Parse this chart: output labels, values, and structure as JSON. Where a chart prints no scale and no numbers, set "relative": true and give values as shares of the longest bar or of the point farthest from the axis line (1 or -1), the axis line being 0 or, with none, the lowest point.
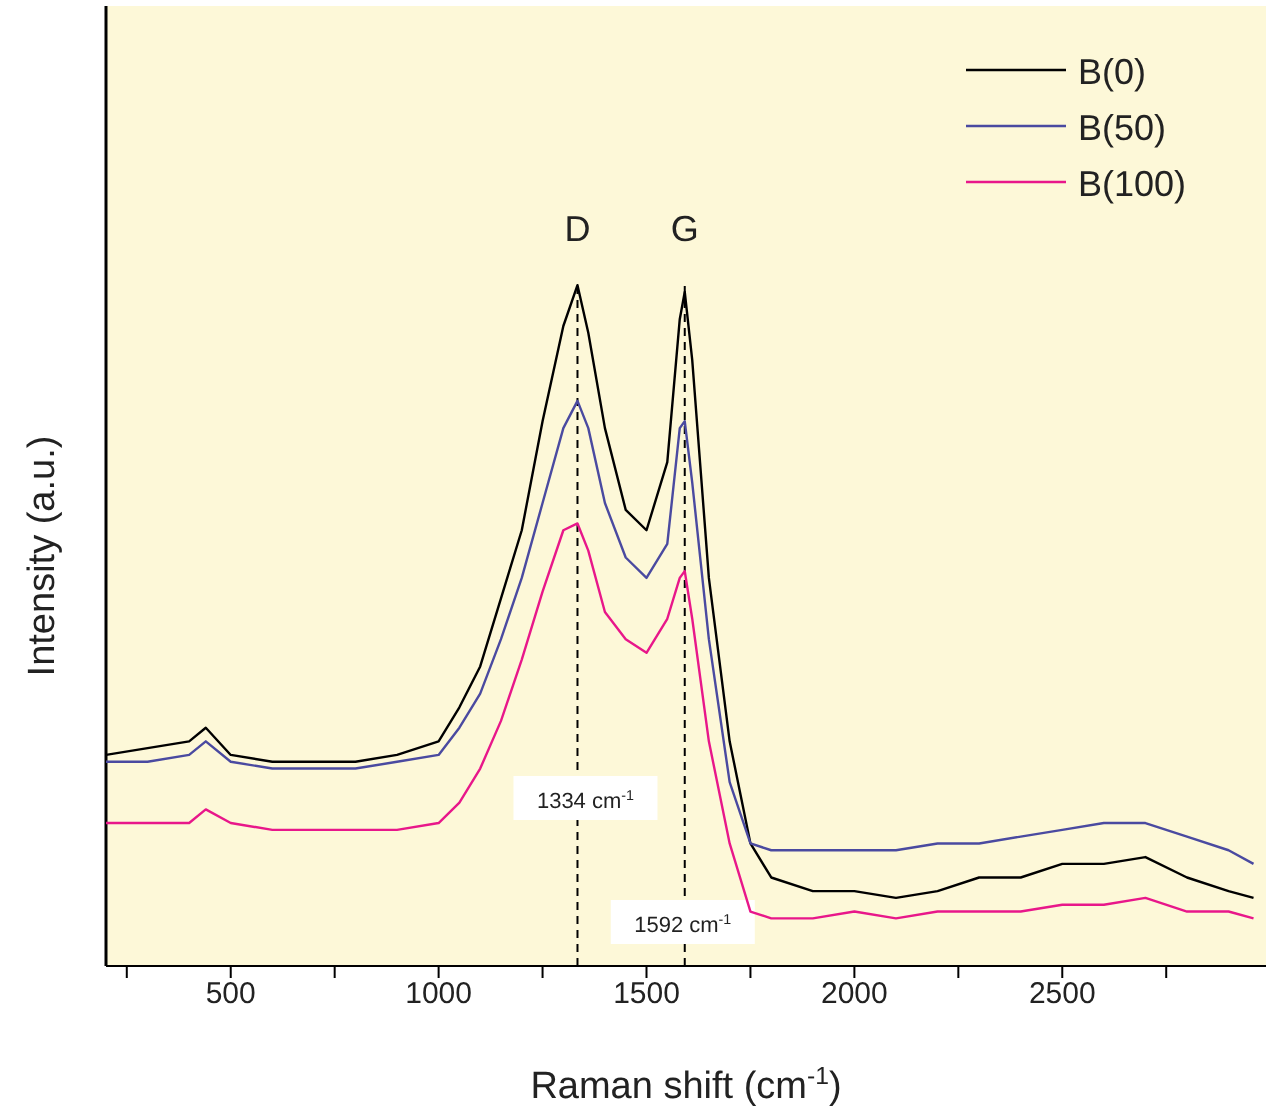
{
  "chart_data": {
    "type": "line",
    "relative": true,
    "xlabel": "Raman shift (cm$^{-1}$)",
    "ylabel": "Intensity (a.u.)",
    "x": [
      200,
      300,
      400,
      440,
      500,
      600,
      700,
      800,
      900,
      1000,
      1050,
      1100,
      1150,
      1200,
      1250,
      1300,
      1334,
      1360,
      1400,
      1450,
      1500,
      1550,
      1580,
      1592,
      1610,
      1650,
      1700,
      1750,
      1800,
      1900,
      2000,
      2100,
      2200,
      2300,
      2400,
      2500,
      2600,
      2700,
      2800,
      2900,
      2960
    ],
    "xlim": [
      200,
      2990
    ],
    "xticks": [
      {
        "value": 250,
        "label": null
      },
      500,
      {
        "value": 750,
        "label": null
      },
      1000,
      {
        "value": 1250,
        "label": null
      },
      1500,
      {
        "value": 1750,
        "label": null
      },
      2000,
      {
        "value": 2250,
        "label": null
      },
      2500,
      {
        "value": 2750,
        "label": null
      }
    ],
    "series": [
      {
        "name": "B(0)",
        "color": "#000000",
        "values": [
          0.31,
          0.32,
          0.33,
          0.35,
          0.31,
          0.3,
          0.3,
          0.3,
          0.31,
          0.33,
          0.38,
          0.44,
          0.54,
          0.64,
          0.8,
          0.94,
          1.0,
          0.93,
          0.79,
          0.67,
          0.64,
          0.74,
          0.95,
          0.99,
          0.89,
          0.57,
          0.33,
          0.18,
          0.13,
          0.11,
          0.11,
          0.1,
          0.11,
          0.13,
          0.13,
          0.15,
          0.15,
          0.16,
          0.13,
          0.11,
          0.1
        ]
      },
      {
        "name": "B(50)",
        "color": "#4a4aa0",
        "values": [
          0.3,
          0.3,
          0.31,
          0.33,
          0.3,
          0.29,
          0.29,
          0.29,
          0.3,
          0.31,
          0.35,
          0.4,
          0.48,
          0.57,
          0.68,
          0.79,
          0.83,
          0.79,
          0.68,
          0.6,
          0.57,
          0.62,
          0.79,
          0.8,
          0.71,
          0.48,
          0.27,
          0.18,
          0.17,
          0.17,
          0.17,
          0.17,
          0.18,
          0.18,
          0.19,
          0.2,
          0.21,
          0.21,
          0.19,
          0.17,
          0.15
        ]
      },
      {
        "name": "B(100)",
        "color": "#e8178a",
        "values": [
          0.21,
          0.21,
          0.21,
          0.23,
          0.21,
          0.2,
          0.2,
          0.2,
          0.2,
          0.21,
          0.24,
          0.29,
          0.36,
          0.45,
          0.55,
          0.64,
          0.65,
          0.61,
          0.52,
          0.48,
          0.46,
          0.51,
          0.57,
          0.58,
          0.51,
          0.33,
          0.18,
          0.08,
          0.07,
          0.07,
          0.08,
          0.07,
          0.08,
          0.08,
          0.08,
          0.09,
          0.09,
          0.1,
          0.08,
          0.08,
          0.07
        ]
      }
    ],
    "ref_lines": [
      {
        "axis": "x",
        "value": 1334,
        "label": "1334 cm$^{-1}$",
        "line_style": "dashed",
        "color": "#000000"
      },
      {
        "axis": "x",
        "value": 1592,
        "label": "1592 cm$^{-1}$",
        "line_style": "dashed",
        "color": "#000000"
      }
    ],
    "annotations": [
      "D",
      "G"
    ],
    "legend": "top right",
    "grid": false,
    "marker": "none",
    "line_style": "solid"
  }
}
